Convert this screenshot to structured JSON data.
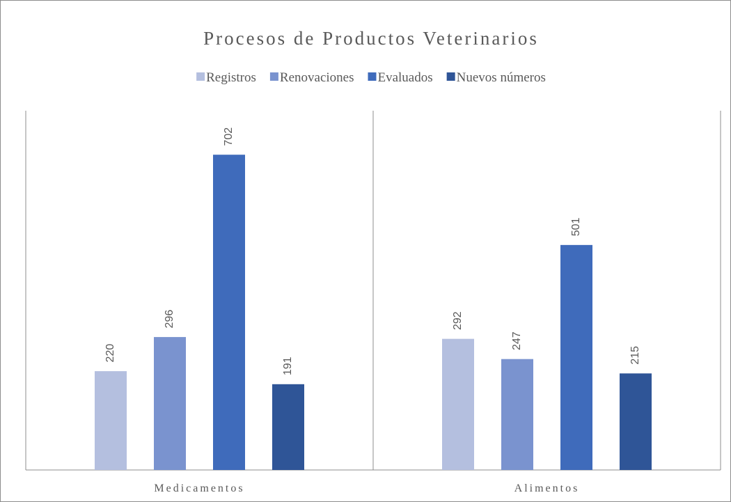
{
  "chart_data": {
    "type": "bar",
    "title": "Procesos de Productos Veterinarios",
    "categories": [
      "Medicamentos",
      "Alimentos"
    ],
    "series": [
      {
        "name": "Registros",
        "color": "#b4bfdf",
        "values": [
          220,
          292
        ]
      },
      {
        "name": "Renovaciones",
        "color": "#7a93cf",
        "values": [
          296,
          247
        ]
      },
      {
        "name": "Evaluados",
        "color": "#3f6bbb",
        "values": [
          702,
          501
        ]
      },
      {
        "name": "Nuevos números",
        "color": "#2f5597",
        "values": [
          191,
          215
        ]
      }
    ],
    "ylim": [
      0,
      800
    ],
    "legend": "top"
  }
}
